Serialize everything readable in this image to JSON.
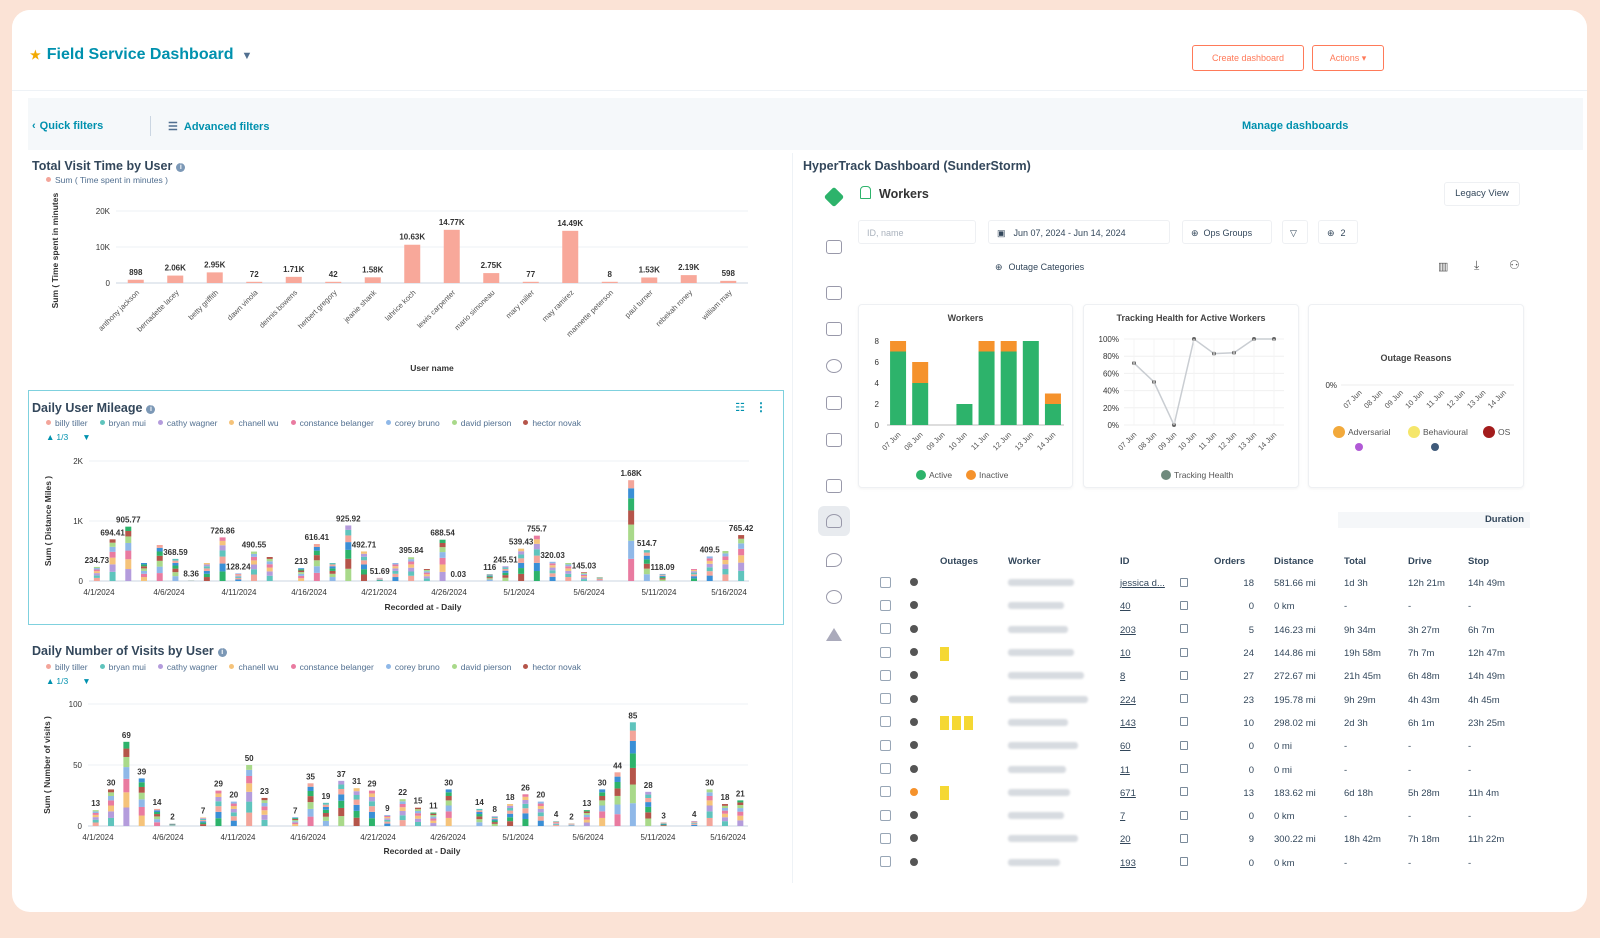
{
  "header": {
    "title": "Field Service Dashboard",
    "create_label": "Create dashboard",
    "actions_label": "Actions ▾"
  },
  "filters": {
    "quick": "Quick filters",
    "advanced": "Advanced filters",
    "manage": "Manage dashboards"
  },
  "colors": {
    "accent": "#0091ae",
    "orange": "#ff7a59",
    "bar_salmon": "#f8a89a",
    "green": "#2db36b",
    "inactive": "#f5922c"
  },
  "visit_time": {
    "title": "Total Visit Time by User",
    "legend": "Sum ( Time spent in minutes )",
    "ylabel": "Sum ( Time spent in minutes )",
    "xlabel": "User name"
  },
  "mileage": {
    "title": "Daily User Mileage",
    "ylabel": "Sum ( Distance Miles )",
    "xlabel": "Recorded at - Daily",
    "pager": "1/3"
  },
  "visits": {
    "title": "Daily Number of Visits by User",
    "ylabel": "Sum ( Number of visits )",
    "xlabel": "Recorded at - Daily",
    "pager": "1/3"
  },
  "users_legend": [
    {
      "name": "billy tiller",
      "color": "#f3a59a"
    },
    {
      "name": "bryan mui",
      "color": "#5fc4bd"
    },
    {
      "name": "cathy wagner",
      "color": "#b49cdc"
    },
    {
      "name": "chanell wu",
      "color": "#f5c37a"
    },
    {
      "name": "constance belanger",
      "color": "#e97ba0"
    },
    {
      "name": "corey bruno",
      "color": "#8fb8e8"
    },
    {
      "name": "david pierson",
      "color": "#a9d98a"
    },
    {
      "name": "hector novak",
      "color": "#b5554a"
    }
  ],
  "chart_data": [
    {
      "type": "bar",
      "title": "Total Visit Time by User",
      "xlabel": "User name",
      "ylabel": "Sum ( Time spent in minutes )",
      "ylim": [
        0,
        20000
      ],
      "yticks": [
        "0",
        "10K",
        "20K"
      ],
      "categories": [
        "anthony jackson",
        "bernadette lacey",
        "betty griffith",
        "dawn vinola",
        "dennis bowens",
        "herbert gregory",
        "jeanie shank",
        "lahrice koch",
        "lewis carpenter",
        "mario simoneau",
        "mary miller",
        "may ramirez",
        "mannette peterson",
        "paul turner",
        "rebekah roney",
        "william may"
      ],
      "values": [
        898,
        2060,
        2950,
        72,
        1710,
        42,
        1580,
        10630,
        14770,
        2750,
        77,
        14490,
        8,
        1530,
        2190,
        598
      ],
      "labels": [
        "898",
        "2.06K",
        "2.95K",
        "72",
        "1.71K",
        "42",
        "1.58K",
        "10.63K",
        "14.77K",
        "2.75K",
        "77",
        "14.49K",
        "8",
        "1.53K",
        "2.19K",
        "598"
      ]
    },
    {
      "type": "bar",
      "title": "Daily User Mileage",
      "xlabel": "Recorded at - Daily",
      "ylabel": "Sum ( Distance Miles )",
      "stacked": true,
      "ylim": [
        0,
        2000
      ],
      "yticks": [
        "0",
        "1K",
        "2K"
      ],
      "xticks": [
        "4/1/2024",
        "4/6/2024",
        "4/11/2024",
        "4/16/2024",
        "4/21/2024",
        "4/26/2024",
        "5/1/2024",
        "5/6/2024",
        "5/11/2024",
        "5/16/2024"
      ],
      "totals": [
        234.73,
        694.41,
        905.77,
        300,
        600,
        368.59,
        8.36,
        300,
        726.86,
        128.24,
        490.55,
        400,
        0,
        213,
        616.41,
        300,
        925.92,
        492.71,
        51.69,
        300,
        395.84,
        200,
        688.54,
        0.03,
        0,
        116,
        245.51,
        539.43,
        755.7,
        320.03,
        300,
        145.03,
        60,
        0,
        1680,
        514.7,
        118.09,
        0,
        200,
        409.5,
        500,
        765.42
      ],
      "labels": [
        "234.73",
        "694.41",
        "905.77",
        "",
        "",
        "368.59",
        "8.36",
        "",
        "726.86",
        "128.24",
        "490.55",
        "",
        "",
        "213",
        "616.41",
        "",
        "925.92",
        "492.71",
        "51.69",
        "",
        "395.84",
        "",
        "688.54",
        "0.03",
        "",
        "116",
        "245.51",
        "539.43",
        "755.7",
        "320.03",
        "",
        "145.03",
        "",
        "",
        "1.68K",
        "514.7",
        "118.09",
        "",
        "",
        "409.5",
        "",
        "765.42"
      ]
    },
    {
      "type": "bar",
      "title": "Daily Number of Visits by User",
      "xlabel": "Recorded at - Daily",
      "ylabel": "Sum ( Number of visits )",
      "stacked": true,
      "ylim": [
        0,
        100
      ],
      "yticks": [
        "0",
        "50",
        "100"
      ],
      "xticks": [
        "4/1/2024",
        "4/6/2024",
        "4/11/2024",
        "4/16/2024",
        "4/21/2024",
        "4/26/2024",
        "5/1/2024",
        "5/6/2024",
        "5/11/2024",
        "5/16/2024"
      ],
      "totals": [
        13,
        30,
        69,
        39,
        14,
        2,
        0,
        7,
        29,
        20,
        50,
        23,
        0,
        7,
        35,
        19,
        37,
        31,
        29,
        9,
        22,
        15,
        11,
        30,
        0,
        14,
        8,
        18,
        26,
        20,
        4,
        2,
        13,
        30,
        44,
        85,
        28,
        3,
        0,
        4,
        30,
        18,
        21
      ],
      "labels": [
        "13",
        "30",
        "69",
        "39",
        "14",
        "2",
        "",
        "7",
        "29",
        "20",
        "50",
        "23",
        "",
        "7",
        "35",
        "19",
        "37",
        "31",
        "29",
        "9",
        "22",
        "15",
        "11",
        "30",
        "",
        "14",
        "8",
        "18",
        "26",
        "20",
        "4",
        "2",
        "13",
        "30",
        "44",
        "85",
        "28",
        "3",
        "",
        "4",
        "30",
        "18",
        "21"
      ]
    },
    {
      "type": "bar",
      "title": "Workers",
      "stacked": true,
      "ylim": [
        0,
        8
      ],
      "yticks": [
        "0",
        "2",
        "4",
        "6",
        "8"
      ],
      "categories": [
        "07 Jun",
        "08 Jun",
        "09 Jun",
        "10 Jun",
        "11 Jun",
        "12 Jun",
        "13 Jun",
        "14 Jun"
      ],
      "series": [
        {
          "name": "Active",
          "values": [
            7,
            4,
            0,
            2,
            7,
            7,
            8,
            2
          ]
        },
        {
          "name": "Inactive",
          "values": [
            1,
            2,
            0,
            0,
            1,
            1,
            0,
            1
          ]
        }
      ]
    },
    {
      "type": "line",
      "title": "Tracking Health for Active Workers",
      "ylim": [
        0,
        100
      ],
      "yticks": [
        "0%",
        "20%",
        "40%",
        "60%",
        "80%",
        "100%"
      ],
      "categories": [
        "07 Jun",
        "08 Jun",
        "09 Jun",
        "10 Jun",
        "11 Jun",
        "12 Jun",
        "13 Jun",
        "14 Jun"
      ],
      "series": [
        {
          "name": "Tracking Health",
          "values": [
            72,
            50,
            0,
            100,
            83,
            84,
            100,
            100
          ]
        }
      ]
    },
    {
      "type": "line",
      "title": "Outage Reasons",
      "yticks": [
        "0%"
      ],
      "categories": [
        "07 Jun",
        "08 Jun",
        "09 Jun",
        "10 Jun",
        "11 Jun",
        "12 Jun",
        "13 Jun",
        "14 Jun"
      ],
      "series": [
        {
          "name": "Adversarial",
          "values": [
            0,
            0,
            0,
            0,
            0,
            0,
            0,
            0
          ]
        },
        {
          "name": "Behavioural",
          "values": [
            0,
            0,
            0,
            0,
            0,
            0,
            0,
            0
          ]
        },
        {
          "name": "OS",
          "values": [
            0,
            0,
            0,
            0,
            0,
            0,
            0,
            0
          ]
        }
      ]
    }
  ],
  "hypertrack": {
    "title": "HyperTrack Dashboard (SunderStorm)",
    "section": "Workers",
    "legacy": "Legacy View",
    "search_placeholder": "ID, name",
    "date_range": "Jun 07, 2024 - Jun 14, 2024",
    "ops_groups": "Ops Groups",
    "filter_count": "2",
    "outage_categories": "Outage Categories",
    "duration": "Duration",
    "cols": [
      "Outages",
      "Worker",
      "ID",
      "Orders",
      "Distance",
      "Total",
      "Drive",
      "Stop"
    ],
    "rows": [
      {
        "outages": 0,
        "id": "jessica d...",
        "orders": "18",
        "distance": "581.66 mi",
        "total": "1d 3h",
        "drive": "12h 21m",
        "stop": "14h 49m",
        "status": "#555555"
      },
      {
        "outages": 0,
        "id": "40",
        "orders": "0",
        "distance": "0 km",
        "total": "-",
        "drive": "-",
        "stop": "-",
        "status": "#555555"
      },
      {
        "outages": 0,
        "id": "203",
        "orders": "5",
        "distance": "146.23 mi",
        "total": "9h 34m",
        "drive": "3h 27m",
        "stop": "6h 7m",
        "status": "#555555"
      },
      {
        "outages": 1,
        "id": "10",
        "orders": "24",
        "distance": "144.86 mi",
        "total": "19h 58m",
        "drive": "7h 7m",
        "stop": "12h 47m",
        "status": "#555555"
      },
      {
        "outages": 0,
        "id": "8",
        "orders": "27",
        "distance": "272.67 mi",
        "total": "21h 45m",
        "drive": "6h 48m",
        "stop": "14h 49m",
        "status": "#555555"
      },
      {
        "outages": 0,
        "id": "224",
        "orders": "23",
        "distance": "195.78 mi",
        "total": "9h 29m",
        "drive": "4h 43m",
        "stop": "4h 45m",
        "status": "#555555"
      },
      {
        "outages": 3,
        "id": "143",
        "orders": "10",
        "distance": "298.02 mi",
        "total": "2d 3h",
        "drive": "6h 1m",
        "stop": "23h 25m",
        "status": "#555555"
      },
      {
        "outages": 0,
        "id": "60",
        "orders": "0",
        "distance": "0 mi",
        "total": "-",
        "drive": "-",
        "stop": "-",
        "status": "#555555"
      },
      {
        "outages": 0,
        "id": "11",
        "orders": "0",
        "distance": "0 mi",
        "total": "-",
        "drive": "-",
        "stop": "-",
        "status": "#555555"
      },
      {
        "outages": 1,
        "id": "671",
        "orders": "13",
        "distance": "183.62 mi",
        "total": "6d 18h",
        "drive": "5h 28m",
        "stop": "11h 4m",
        "status": "#f5922c"
      },
      {
        "outages": 0,
        "id": "7",
        "orders": "0",
        "distance": "0 km",
        "total": "-",
        "drive": "-",
        "stop": "-",
        "status": "#555555"
      },
      {
        "outages": 0,
        "id": "20",
        "orders": "9",
        "distance": "300.22 mi",
        "total": "18h 42m",
        "drive": "7h 18m",
        "stop": "11h 22m",
        "status": "#555555"
      },
      {
        "outages": 0,
        "id": "193",
        "orders": "0",
        "distance": "0 km",
        "total": "-",
        "drive": "-",
        "stop": "-",
        "status": "#555555"
      }
    ]
  }
}
